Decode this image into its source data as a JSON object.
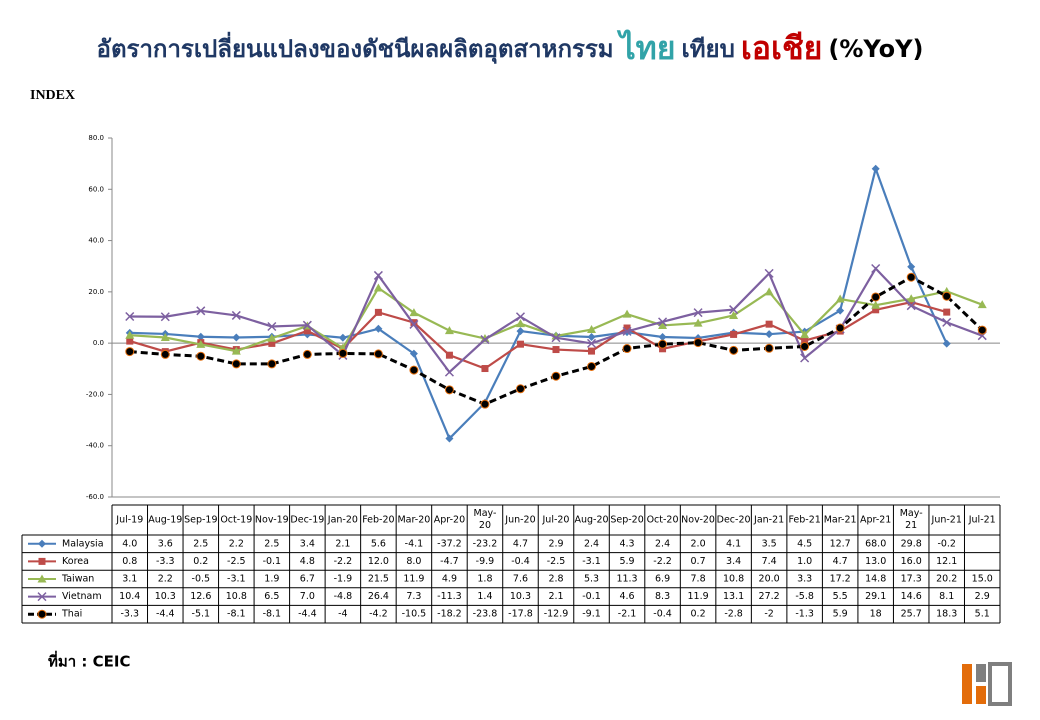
{
  "chart_data": {
    "type": "line",
    "title_parts": [
      "อัตราการเปลี่ยนแปลงของดัชนีผลผลิตอุตสาหกรรม",
      "ไทย",
      "เทียบ",
      "เอเชีย",
      "(%YoY)"
    ],
    "title_colors": [
      "#1f3864",
      "#31a3a8",
      "#1f3864",
      "#c00000",
      "#000000"
    ],
    "y_label": "INDEX",
    "source": "ที่มา : CEIC",
    "categories": [
      "Jul-19",
      "Aug-19",
      "Sep-19",
      "Oct-19",
      "Nov-19",
      "Dec-19",
      "Jan-20",
      "Feb-20",
      "Mar-20",
      "Apr-20",
      "May-20",
      "Jun-20",
      "Jul-20",
      "Aug-20",
      "Sep-20",
      "Oct-20",
      "Nov-20",
      "Dec-20",
      "Jan-21",
      "Feb-21",
      "Mar-21",
      "Apr-21",
      "May-21",
      "Jun-21",
      "Jul-21"
    ],
    "ylim": [
      -60,
      80
    ],
    "yticks": [
      {
        "value": -60,
        "label": "-60.0"
      },
      {
        "value": -40,
        "label": "-40.0"
      },
      {
        "value": -20,
        "label": "-20.0"
      },
      {
        "value": 0,
        "label": "0.0"
      },
      {
        "value": 20,
        "label": "20.0"
      },
      {
        "value": 40,
        "label": "40.0"
      },
      {
        "value": 60,
        "label": "60.0"
      },
      {
        "value": 80,
        "label": "80.0"
      }
    ],
    "grid": false,
    "series": [
      {
        "name": "Malaysia",
        "color": "#4a7ebb",
        "marker": "diamond",
        "dashed": false,
        "values": [
          4.0,
          3.6,
          2.5,
          2.2,
          2.5,
          3.4,
          2.1,
          5.6,
          -4.1,
          -37.2,
          -23.2,
          4.7,
          2.9,
          2.4,
          4.3,
          2.4,
          2.0,
          4.1,
          3.5,
          4.5,
          12.7,
          68.0,
          29.8,
          -0.2,
          null
        ],
        "value_labels": [
          "4.0",
          "3.6",
          "2.5",
          "2.2",
          "2.5",
          "3.4",
          "2.1",
          "5.6",
          "-4.1",
          "-37.2",
          "-23.2",
          "4.7",
          "2.9",
          "2.4",
          "4.3",
          "2.4",
          "2.0",
          "4.1",
          "3.5",
          "4.5",
          "12.7",
          "68.0",
          "29.8",
          "-0.2",
          null
        ]
      },
      {
        "name": "Korea",
        "color": "#be4b48",
        "marker": "square",
        "dashed": false,
        "values": [
          0.8,
          -3.3,
          0.2,
          -2.5,
          -0.1,
          4.8,
          -2.2,
          12.0,
          8.0,
          -4.7,
          -9.9,
          -0.4,
          -2.5,
          -3.1,
          5.9,
          -2.2,
          0.7,
          3.4,
          7.4,
          1.0,
          4.7,
          13.0,
          16.0,
          12.1,
          null
        ],
        "value_labels": [
          "0.8",
          "-3.3",
          "0.2",
          "-2.5",
          "-0.1",
          "4.8",
          "-2.2",
          "12.0",
          "8.0",
          "-4.7",
          "-9.9",
          "-0.4",
          "-2.5",
          "-3.1",
          "5.9",
          "-2.2",
          "0.7",
          "3.4",
          "7.4",
          "1.0",
          "4.7",
          "13.0",
          "16.0",
          "12.1",
          null
        ]
      },
      {
        "name": "Taiwan",
        "color": "#98b954",
        "marker": "triangle",
        "dashed": false,
        "values": [
          3.1,
          2.2,
          -0.5,
          -3.1,
          1.9,
          6.7,
          -1.9,
          21.5,
          11.9,
          4.9,
          1.8,
          7.6,
          2.8,
          5.3,
          11.3,
          6.9,
          7.8,
          10.8,
          20.0,
          3.3,
          17.2,
          14.8,
          17.3,
          20.2,
          15.0
        ],
        "value_labels": [
          "3.1",
          "2.2",
          "-0.5",
          "-3.1",
          "1.9",
          "6.7",
          "-1.9",
          "21.5",
          "11.9",
          "4.9",
          "1.8",
          "7.6",
          "2.8",
          "5.3",
          "11.3",
          "6.9",
          "7.8",
          "10.8",
          "20.0",
          "3.3",
          "17.2",
          "14.8",
          "17.3",
          "20.2",
          "15.0"
        ]
      },
      {
        "name": "Vietnam",
        "color": "#7d60a0",
        "marker": "x",
        "dashed": false,
        "values": [
          10.4,
          10.3,
          12.6,
          10.8,
          6.5,
          7.0,
          -4.8,
          26.4,
          7.3,
          -11.3,
          1.4,
          10.3,
          2.1,
          -0.1,
          4.6,
          8.3,
          11.9,
          13.1,
          27.2,
          -5.8,
          5.5,
          29.1,
          14.6,
          8.1,
          2.9
        ],
        "value_labels": [
          "10.4",
          "10.3",
          "12.6",
          "10.8",
          "6.5",
          "7.0",
          "-4.8",
          "26.4",
          "7.3",
          "-11.3",
          "1.4",
          "10.3",
          "2.1",
          "-0.1",
          "4.6",
          "8.3",
          "11.9",
          "13.1",
          "27.2",
          "-5.8",
          "5.5",
          "29.1",
          "14.6",
          "8.1",
          "2.9"
        ]
      },
      {
        "name": "Thai",
        "color": "#000000",
        "marker": "circle",
        "dashed": true,
        "values": [
          -3.3,
          -4.4,
          -5.1,
          -8.1,
          -8.1,
          -4.4,
          -4,
          -4.2,
          -10.5,
          -18.2,
          -23.8,
          -17.8,
          -12.9,
          -9.1,
          -2.1,
          -0.4,
          0.2,
          -2.8,
          -2,
          -1.3,
          5.9,
          18,
          25.7,
          18.3,
          5.1
        ]
      }
    ]
  }
}
